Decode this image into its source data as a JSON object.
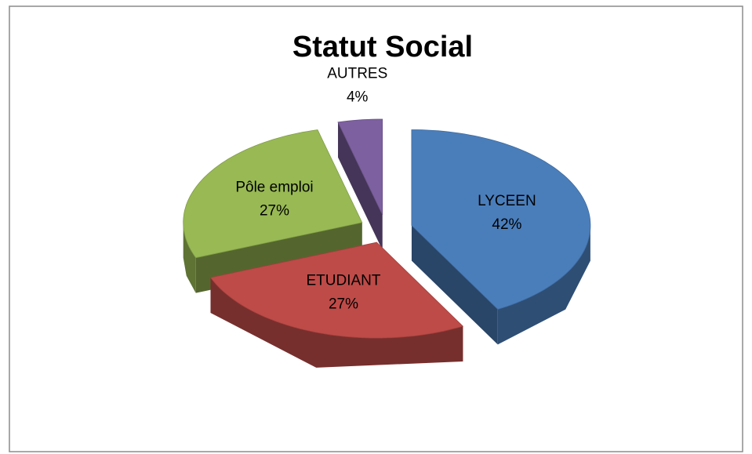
{
  "chart_data": {
    "type": "pie",
    "title": "Statut Social",
    "categories": [
      "LYCEEN",
      "ETUDIANT",
      "Pôle emploi",
      "AUTRES"
    ],
    "values": [
      42,
      27,
      27,
      4
    ],
    "value_labels": [
      "42%",
      "27%",
      "27%",
      "4%"
    ],
    "colors": [
      "#4a7ebb",
      "#be4b48",
      "#98b954",
      "#7d60a0"
    ]
  }
}
